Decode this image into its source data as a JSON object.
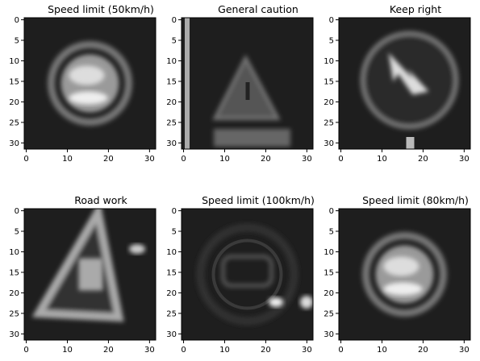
{
  "figure": {
    "panels": [
      {
        "title": "Speed limit (50km/h)",
        "sign": "circle-speed"
      },
      {
        "title": "General caution",
        "sign": "triangle-caution"
      },
      {
        "title": "Keep right",
        "sign": "circle-arrow"
      },
      {
        "title": "Road work",
        "sign": "triangle-work"
      },
      {
        "title": "Speed limit (100km/h)",
        "sign": "circle-100"
      },
      {
        "title": "Speed limit (80km/h)",
        "sign": "circle-speed-80"
      }
    ],
    "axis": {
      "y_ticks": [
        "0",
        "5",
        "10",
        "15",
        "20",
        "25",
        "30"
      ],
      "x_ticks": [
        "0",
        "10",
        "20",
        "30"
      ]
    }
  }
}
